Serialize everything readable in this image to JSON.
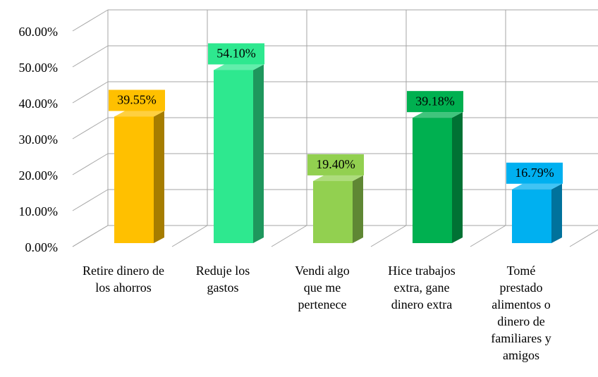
{
  "chart_data": {
    "type": "bar3d",
    "categories": [
      "Retire dinero de los ahorros",
      "Reduje los gastos",
      "Vendi algo que me pertenece",
      "Hice trabajos extra, gane dinero extra",
      "Tomé prestado alimentos o dinero de familiares y amigos"
    ],
    "values": [
      39.55,
      54.1,
      19.4,
      39.18,
      16.79
    ],
    "value_labels": [
      "39.55%",
      "54.10%",
      "19.40%",
      "39.18%",
      "16.79%"
    ],
    "colors": [
      "#FFC000",
      "#2EE88F",
      "#92D050",
      "#00B050",
      "#00B0F0"
    ],
    "ylim": [
      0,
      60
    ],
    "yticks": [
      {
        "value": 0,
        "label": "0.00%"
      },
      {
        "value": 10,
        "label": "10.00%"
      },
      {
        "value": 20,
        "label": "20.00%"
      },
      {
        "value": 30,
        "label": "30.00%"
      },
      {
        "value": 40,
        "label": "40.00%"
      },
      {
        "value": 50,
        "label": "50.00%"
      },
      {
        "value": 60,
        "label": "60.00%"
      }
    ],
    "grid": true
  }
}
